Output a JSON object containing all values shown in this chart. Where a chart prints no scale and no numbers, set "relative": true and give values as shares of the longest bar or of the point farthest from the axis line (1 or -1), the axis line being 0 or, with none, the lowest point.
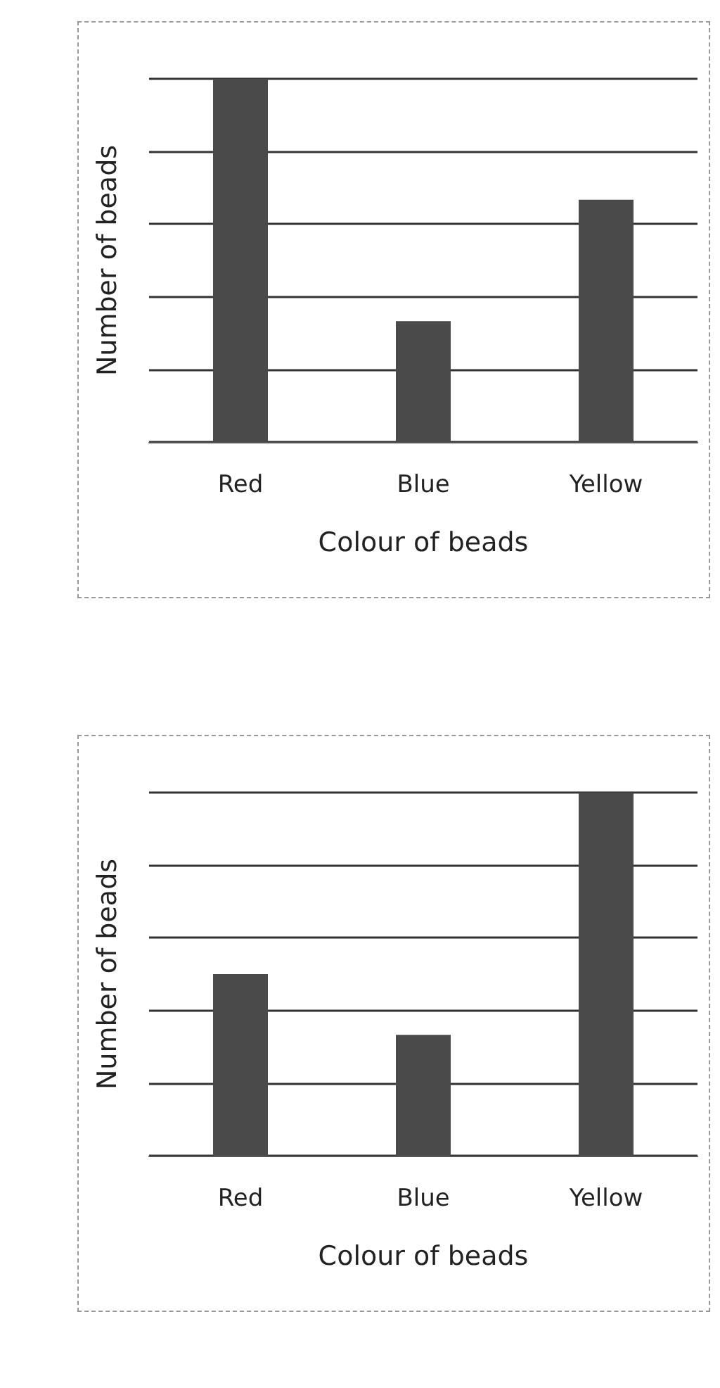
{
  "chart_data": [
    {
      "type": "bar",
      "categories": [
        "Red",
        "Blue",
        "Yellow"
      ],
      "values": [
        1,
        0.333,
        0.667
      ],
      "color": "#4a4a4a",
      "relative": true,
      "xlabel": "Colour of beads",
      "ylabel": "Number of beads",
      "grid": "y"
    },
    {
      "type": "bar",
      "categories": [
        "Red",
        "Blue",
        "Yellow"
      ],
      "values": [
        0.5,
        0.333,
        1
      ],
      "color": "#4a4a4a",
      "relative": true,
      "xlabel": "Colour of beads",
      "ylabel": "Number of beads",
      "grid": "y"
    }
  ]
}
